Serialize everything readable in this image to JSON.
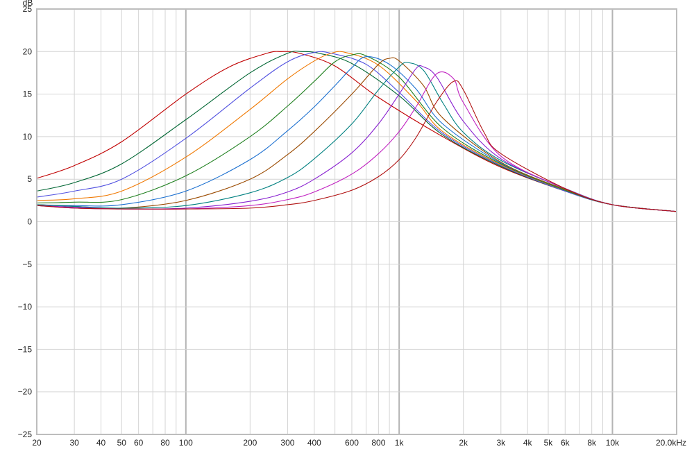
{
  "chart_data": {
    "type": "line",
    "title": "",
    "y_unit": "dB",
    "x_scale": "log",
    "xlim": [
      20,
      20000
    ],
    "ylim": [
      -25,
      25
    ],
    "grid": true,
    "legend": "none",
    "x_ticks": [
      {
        "value": 20,
        "label": "20"
      },
      {
        "value": 30,
        "label": "30"
      },
      {
        "value": 40,
        "label": "40"
      },
      {
        "value": 50,
        "label": "50"
      },
      {
        "value": 60,
        "label": "60"
      },
      {
        "value": 80,
        "label": "80"
      },
      {
        "value": 100,
        "label": "100"
      },
      {
        "value": 200,
        "label": "200"
      },
      {
        "value": 300,
        "label": "300"
      },
      {
        "value": 400,
        "label": "400"
      },
      {
        "value": 600,
        "label": "600"
      },
      {
        "value": 800,
        "label": "800"
      },
      {
        "value": 1000,
        "label": "1k"
      },
      {
        "value": 2000,
        "label": "2k"
      },
      {
        "value": 3000,
        "label": "3k"
      },
      {
        "value": 4000,
        "label": "4k"
      },
      {
        "value": 5000,
        "label": "5k"
      },
      {
        "value": 6000,
        "label": "6k"
      },
      {
        "value": 8000,
        "label": "8k"
      },
      {
        "value": 10000,
        "label": "10k"
      },
      {
        "value": 20000,
        "label": "20.0kHz"
      }
    ],
    "y_ticks": [
      {
        "value": 25,
        "label": "25"
      },
      {
        "value": 20,
        "label": "20"
      },
      {
        "value": 15,
        "label": "15"
      },
      {
        "value": 10,
        "label": "10"
      },
      {
        "value": 5,
        "label": "5"
      },
      {
        "value": 0,
        "label": "0"
      },
      {
        "value": -5,
        "label": "−5"
      },
      {
        "value": -10,
        "label": "−10"
      },
      {
        "value": -15,
        "label": "−15"
      },
      {
        "value": -20,
        "label": "−20"
      },
      {
        "value": -25,
        "label": "−25"
      }
    ],
    "colors": {
      "grid_minor": "#d4d4d4",
      "grid_major": "#b4b4b4",
      "frame": "#bdbdbd",
      "background": "#ffffff"
    },
    "series": [
      {
        "color": "#c00000",
        "x": [
          20,
          30,
          50,
          100,
          160,
          240,
          280,
          340,
          500,
          800,
          1600,
          3000,
          6000,
          10000,
          20000
        ],
        "y": [
          5.1,
          6.6,
          9.4,
          15.0,
          18.2,
          19.8,
          20.0,
          19.8,
          18.3,
          14.6,
          10.0,
          6.4,
          3.6,
          2.0,
          1.2
        ]
      },
      {
        "color": "#006633",
        "x": [
          20,
          30,
          50,
          100,
          200,
          300,
          350,
          420,
          600,
          1000,
          1600,
          3000,
          6000,
          10000,
          20000
        ],
        "y": [
          3.6,
          4.6,
          6.8,
          12.0,
          17.5,
          19.8,
          20.0,
          19.8,
          18.6,
          14.8,
          10.2,
          6.5,
          3.6,
          2.0,
          1.2
        ]
      },
      {
        "color": "#5050e0",
        "x": [
          20,
          30,
          50,
          100,
          200,
          300,
          400,
          480,
          700,
          1000,
          1600,
          3000,
          6000,
          10000,
          20000
        ],
        "y": [
          2.9,
          3.6,
          5.0,
          9.8,
          15.7,
          18.8,
          19.9,
          19.8,
          18.5,
          15.2,
          10.4,
          6.6,
          3.6,
          2.0,
          1.2
        ]
      },
      {
        "color": "#f07800",
        "x": [
          20,
          30,
          50,
          100,
          200,
          300,
          400,
          480,
          560,
          800,
          1200,
          1600,
          3000,
          6000,
          10000,
          20000
        ],
        "y": [
          2.5,
          2.7,
          3.6,
          7.6,
          13.2,
          16.8,
          18.9,
          19.8,
          19.9,
          18.4,
          14.2,
          10.6,
          6.7,
          3.7,
          2.0,
          1.2
        ]
      },
      {
        "color": "#208020",
        "x": [
          20,
          30,
          50,
          100,
          200,
          300,
          400,
          500,
          600,
          700,
          1000,
          1600,
          3000,
          6000,
          10000,
          20000
        ],
        "y": [
          2.2,
          2.3,
          2.6,
          5.4,
          10.0,
          13.6,
          16.5,
          18.8,
          19.6,
          19.5,
          17.0,
          11.0,
          6.8,
          3.7,
          2.0,
          1.2
        ]
      },
      {
        "color": "#1a6fd0",
        "x": [
          20,
          30,
          50,
          100,
          200,
          300,
          400,
          500,
          600,
          700,
          900,
          1200,
          1600,
          3000,
          6000,
          10000,
          20000
        ],
        "y": [
          2.0,
          1.9,
          2.0,
          3.6,
          7.3,
          10.7,
          13.5,
          16.0,
          18.1,
          19.4,
          18.5,
          15.6,
          11.5,
          6.9,
          3.8,
          2.0,
          1.2
        ]
      },
      {
        "color": "#9a4a00",
        "x": [
          20,
          30,
          50,
          100,
          200,
          300,
          400,
          600,
          800,
          900,
          1000,
          1300,
          1600,
          3000,
          6000,
          10000,
          20000
        ],
        "y": [
          2.0,
          1.8,
          1.6,
          2.5,
          5.0,
          7.9,
          10.6,
          15.0,
          18.5,
          19.2,
          18.9,
          16.0,
          12.2,
          7.0,
          3.8,
          2.0,
          1.2
        ]
      },
      {
        "color": "#008080",
        "x": [
          20,
          30,
          50,
          100,
          200,
          300,
          400,
          600,
          800,
          1000,
          1100,
          1300,
          1600,
          2000,
          3000,
          6000,
          10000,
          20000
        ],
        "y": [
          2.0,
          1.8,
          1.6,
          1.9,
          3.4,
          5.2,
          7.4,
          11.5,
          15.5,
          18.2,
          18.7,
          17.8,
          14.0,
          10.5,
          7.2,
          3.9,
          2.0,
          1.2
        ]
      },
      {
        "color": "#8820d0",
        "x": [
          20,
          30,
          50,
          100,
          200,
          300,
          400,
          600,
          800,
          1000,
          1200,
          1300,
          1500,
          2000,
          3000,
          6000,
          10000,
          20000
        ],
        "y": [
          1.9,
          1.7,
          1.5,
          1.6,
          2.4,
          3.5,
          5.0,
          8.1,
          11.5,
          15.0,
          18.0,
          18.2,
          17.0,
          11.8,
          7.4,
          3.9,
          2.0,
          1.2
        ]
      },
      {
        "color": "#c020c0",
        "x": [
          20,
          30,
          50,
          100,
          200,
          300,
          400,
          600,
          800,
          1000,
          1200,
          1500,
          1800,
          2000,
          3000,
          6000,
          10000,
          20000
        ],
        "y": [
          1.9,
          1.6,
          1.5,
          1.5,
          1.9,
          2.6,
          3.5,
          5.6,
          8.0,
          10.6,
          13.5,
          17.4,
          16.8,
          14.0,
          7.7,
          3.9,
          2.0,
          1.2
        ]
      },
      {
        "color": "#b01010",
        "x": [
          20,
          30,
          50,
          100,
          200,
          300,
          400,
          600,
          800,
          1000,
          1200,
          1500,
          1800,
          2000,
          2500,
          3000,
          6000,
          10000,
          20000
        ],
        "y": [
          1.9,
          1.6,
          1.5,
          1.5,
          1.6,
          2.0,
          2.5,
          3.7,
          5.3,
          7.3,
          9.9,
          14.1,
          16.5,
          15.5,
          10.5,
          8.0,
          3.9,
          2.0,
          1.2
        ]
      }
    ]
  }
}
